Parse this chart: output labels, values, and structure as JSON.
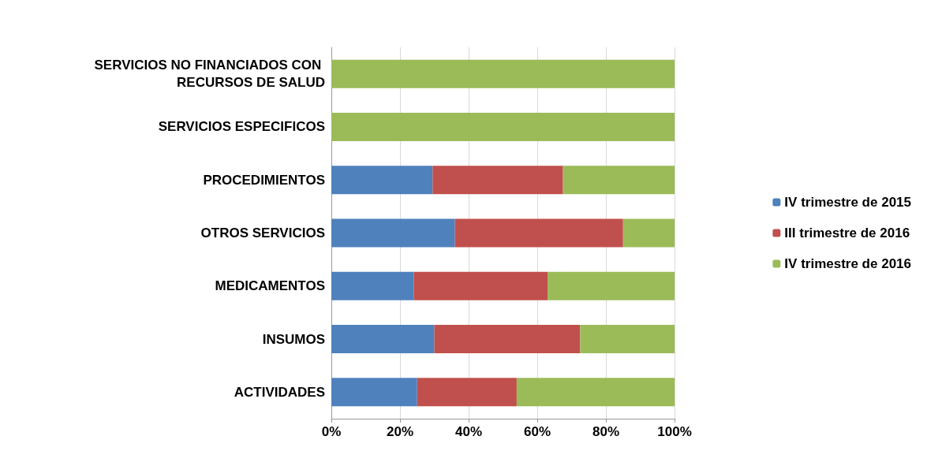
{
  "chart_data": {
    "type": "bar",
    "orientation": "horizontal",
    "stacked": true,
    "categories": [
      "SERVICIOS NO FINANCIADOS CON RECURSOS DE SALUD",
      "SERVICIOS ESPECIFICOS",
      "PROCEDIMIENTOS",
      "OTROS SERVICIOS",
      "MEDICAMENTOS",
      "INSUMOS",
      "ACTIVIDADES"
    ],
    "series": [
      {
        "name": "IV trimestre de 2015",
        "color": "#4f81bd",
        "values": [
          0,
          0,
          29.5,
          36,
          24,
          30,
          25
        ]
      },
      {
        "name": "III trimestre de 2016",
        "color": "#c0504d",
        "values": [
          0,
          0,
          38,
          49,
          39,
          42.5,
          29
        ]
      },
      {
        "name": "IV trimestre de 2016",
        "color": "#9bbb59",
        "values": [
          100,
          100,
          32.5,
          15,
          37,
          27.5,
          46
        ]
      }
    ],
    "xlim": [
      0,
      100
    ],
    "xticks": [
      {
        "value": 0,
        "label": "0%"
      },
      {
        "value": 20,
        "label": "20%"
      },
      {
        "value": 40,
        "label": "40%"
      },
      {
        "value": 60,
        "label": "60%"
      },
      {
        "value": 80,
        "label": "80%"
      },
      {
        "value": 100,
        "label": "100%"
      }
    ],
    "grid": "x",
    "legend": "right"
  }
}
